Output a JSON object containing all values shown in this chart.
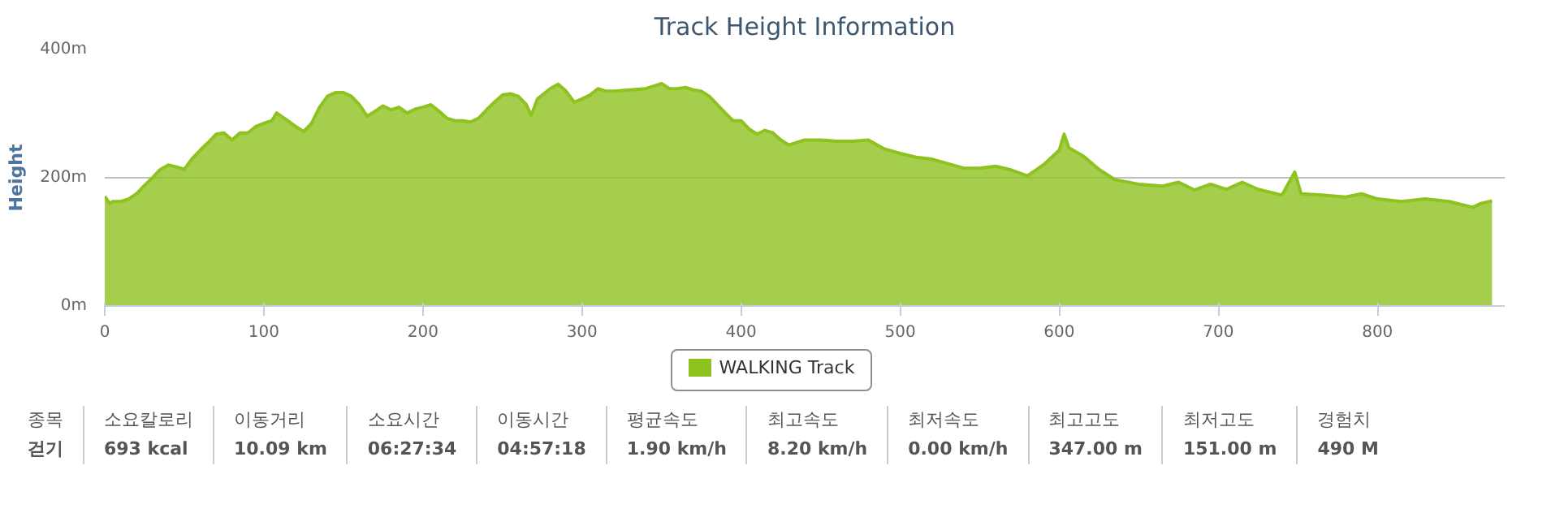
{
  "chart_data": {
    "type": "area",
    "title": "Track Height Information",
    "ylabel": "Height",
    "xlim": [
      0,
      880
    ],
    "xticks": [
      0,
      100,
      200,
      300,
      400,
      500,
      600,
      700,
      800
    ],
    "ylim": [
      0,
      400
    ],
    "yticks": [
      {
        "value": 0,
        "label": "0m"
      },
      {
        "value": 200,
        "label": "200m"
      },
      {
        "value": 400,
        "label": "400m"
      }
    ],
    "grid": "y",
    "legend": "bottom",
    "series": [
      {
        "name": "WALKING Track",
        "color": "#8dc21f",
        "x": [
          0,
          3,
          5,
          10,
          15,
          20,
          25,
          30,
          35,
          40,
          45,
          50,
          55,
          60,
          65,
          70,
          75,
          80,
          85,
          90,
          95,
          100,
          105,
          108,
          115,
          120,
          125,
          130,
          135,
          140,
          145,
          150,
          155,
          160,
          165,
          170,
          175,
          180,
          185,
          190,
          195,
          200,
          205,
          210,
          215,
          220,
          225,
          230,
          235,
          240,
          245,
          250,
          255,
          260,
          265,
          268,
          272,
          280,
          285,
          290,
          295,
          300,
          305,
          310,
          315,
          320,
          330,
          340,
          345,
          350,
          355,
          360,
          365,
          370,
          375,
          380,
          385,
          390,
          395,
          400,
          405,
          410,
          415,
          420,
          425,
          430,
          440,
          450,
          460,
          470,
          480,
          490,
          500,
          510,
          520,
          530,
          540,
          550,
          560,
          570,
          580,
          590,
          600,
          603,
          606,
          615,
          625,
          635,
          650,
          665,
          675,
          685,
          695,
          705,
          715,
          725,
          740,
          748,
          752,
          765,
          780,
          790,
          800,
          815,
          830,
          845,
          860,
          865,
          872
        ],
        "values": [
          171,
          160,
          163,
          163,
          167,
          175,
          188,
          200,
          213,
          220,
          217,
          213,
          230,
          243,
          255,
          268,
          270,
          259,
          270,
          270,
          280,
          285,
          289,
          301,
          289,
          280,
          272,
          285,
          310,
          327,
          333,
          333,
          327,
          314,
          296,
          304,
          312,
          306,
          310,
          301,
          307,
          310,
          314,
          304,
          293,
          289,
          289,
          287,
          293,
          306,
          318,
          329,
          331,
          327,
          314,
          297,
          323,
          339,
          346,
          335,
          318,
          323,
          329,
          339,
          335,
          335,
          337,
          339,
          343,
          347,
          339,
          339,
          341,
          337,
          335,
          327,
          314,
          301,
          289,
          289,
          276,
          268,
          274,
          270,
          259,
          251,
          259,
          259,
          257,
          257,
          259,
          245,
          238,
          232,
          229,
          222,
          215,
          215,
          218,
          212,
          203,
          220,
          243,
          268,
          247,
          234,
          213,
          197,
          190,
          187,
          193,
          181,
          190,
          182,
          193,
          182,
          173,
          209,
          175,
          173,
          170,
          175,
          167,
          163,
          167,
          163,
          154,
          160,
          164
        ]
      }
    ],
    "annotations": [
      "종목",
      "걷기",
      "소요칼로리",
      "693 kcal",
      "이동거리",
      "10.09 km",
      "소요시간",
      "06:27:34",
      "이동시간",
      "04:57:18",
      "평균속도",
      "1.90 km/h",
      "최고속도",
      "8.20 km/h",
      "최저속도",
      "0.00 km/h",
      "최고고도",
      "347.00 m",
      "최저고도",
      "151.00 m",
      "경험치",
      "490 M"
    ]
  }
}
